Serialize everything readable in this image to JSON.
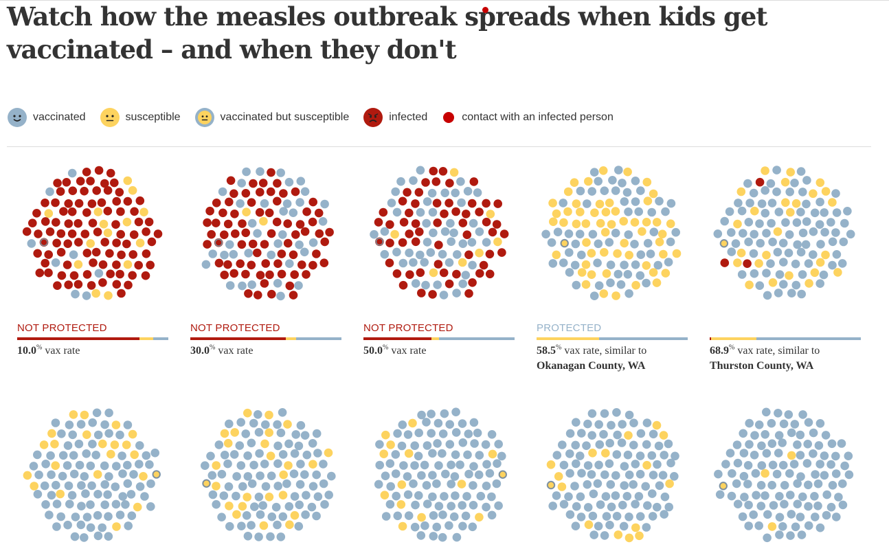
{
  "title": "Watch how the measles outbreak spreads when kids get vaccinated – and when they don't",
  "colors": {
    "vaccinated": "#95b2c9",
    "susceptible": "#fdd35f",
    "infected": "#b01a0f",
    "contact": "#c70000",
    "not_protected": "#b01a0f",
    "protected": "#95b2c9"
  },
  "legend": [
    {
      "key": "vaccinated",
      "label": "vaccinated",
      "icon": "vaccinated-face-icon"
    },
    {
      "key": "susceptible",
      "label": "susceptible",
      "icon": "susceptible-face-icon"
    },
    {
      "key": "vacc_susceptible",
      "label": "vaccinated but susceptible",
      "icon": "vaccinated-susceptible-face-icon"
    },
    {
      "key": "infected",
      "label": "infected",
      "icon": "infected-face-icon"
    },
    {
      "key": "contact",
      "label": "contact with an infected person",
      "icon": "contact-dot-icon"
    }
  ],
  "chart_data": {
    "type": "scatter",
    "unit": "% vax rate",
    "simulations": [
      {
        "rate": "10.0",
        "status": "NOT PROTECTED",
        "county": "",
        "proportions": {
          "infected": 0.81,
          "susceptible": 0.09,
          "vaccinated": 0.1
        }
      },
      {
        "rate": "30.0",
        "status": "NOT PROTECTED",
        "county": "",
        "proportions": {
          "infected": 0.63,
          "susceptible": 0.07,
          "vaccinated": 0.3
        }
      },
      {
        "rate": "50.0",
        "status": "NOT PROTECTED",
        "county": "",
        "proportions": {
          "infected": 0.45,
          "susceptible": 0.05,
          "vaccinated": 0.5
        }
      },
      {
        "rate": "58.5",
        "status": "PROTECTED",
        "county": "Okanagan County, WA",
        "proportions": {
          "infected": 0.0,
          "susceptible": 0.415,
          "vaccinated": 0.585
        }
      },
      {
        "rate": "68.9",
        "status": "",
        "county": "Thurston County, WA",
        "proportions": {
          "infected": 0.01,
          "susceptible": 0.3,
          "vaccinated": 0.69
        }
      },
      {
        "rate": "",
        "status": "",
        "county": "",
        "proportions": {
          "infected": 0.0,
          "susceptible": 0.25,
          "vaccinated": 0.75
        }
      },
      {
        "rate": "",
        "status": "",
        "county": "",
        "proportions": {
          "infected": 0.0,
          "susceptible": 0.18,
          "vaccinated": 0.82
        }
      },
      {
        "rate": "",
        "status": "",
        "county": "",
        "proportions": {
          "infected": 0.0,
          "susceptible": 0.15,
          "vaccinated": 0.85
        }
      },
      {
        "rate": "",
        "status": "",
        "county": "",
        "proportions": {
          "infected": 0.0,
          "susceptible": 0.12,
          "vaccinated": 0.88
        }
      },
      {
        "rate": "",
        "status": "",
        "county": "",
        "proportions": {
          "infected": 0.0,
          "susceptible": 0.02,
          "vaccinated": 0.98
        }
      }
    ]
  },
  "captions": {
    "similar_to": ", similar to",
    "vax_rate": "vax rate"
  }
}
